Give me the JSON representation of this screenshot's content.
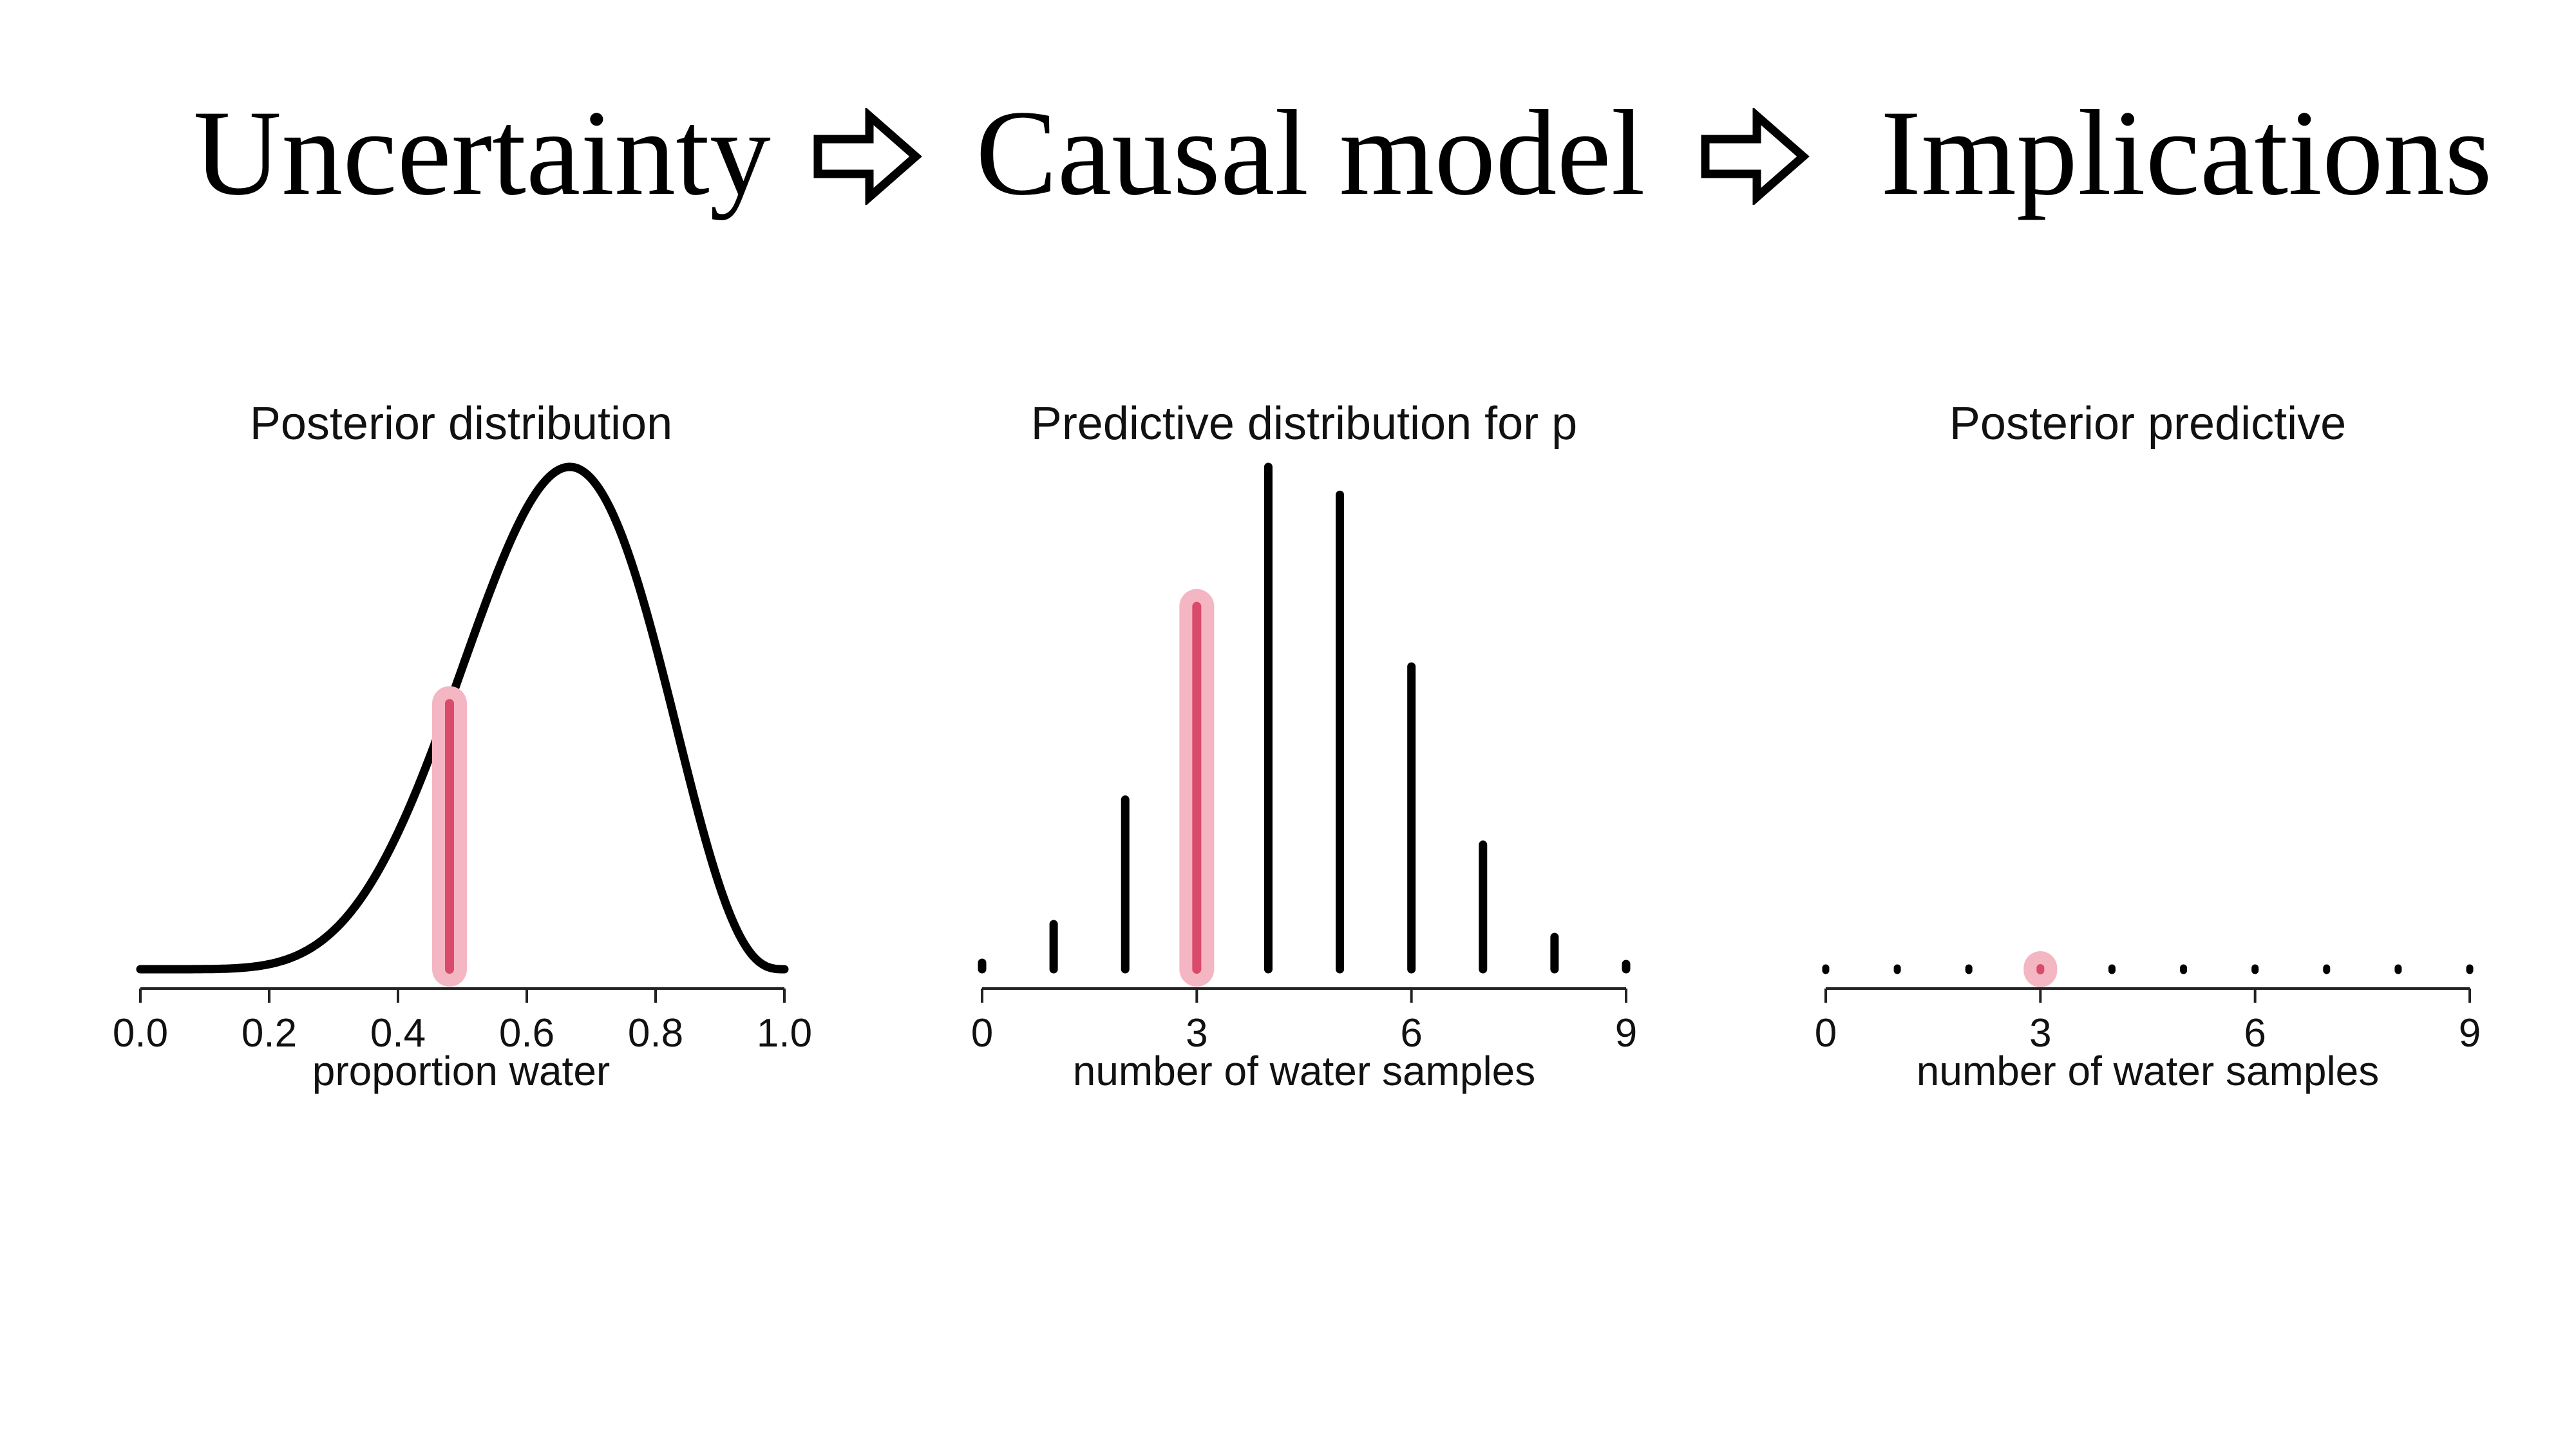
{
  "headline": {
    "steps": [
      "Uncertainty",
      "Causal model",
      "Implications"
    ],
    "arrow_icon": "right-outline-arrow-icon"
  },
  "colors": {
    "ink": "#000000",
    "highlight_core": "#d94a6b",
    "highlight_halo": "#f4b6c2"
  },
  "chart_data": [
    {
      "type": "line",
      "title": "Posterior distribution",
      "xlabel": "proportion water",
      "ylabel": "",
      "xlim": [
        0,
        1
      ],
      "x_ticks": [
        "0.0",
        "0.2",
        "0.4",
        "0.6",
        "0.8",
        "1.0"
      ],
      "x_tick_values": [
        0,
        0.2,
        0.4,
        0.6,
        0.8,
        1.0
      ],
      "curve": {
        "shape": "beta",
        "alpha": 7,
        "beta": 4
      },
      "highlight": {
        "x": 0.48,
        "note": "selected p"
      }
    },
    {
      "type": "bar",
      "title": "Predictive distribution for p",
      "xlabel": "number of water samples",
      "ylabel": "",
      "categories": [
        0,
        1,
        2,
        3,
        4,
        5,
        6,
        7,
        8,
        9
      ],
      "values": [
        0.003,
        0.021,
        0.079,
        0.169,
        0.234,
        0.221,
        0.141,
        0.058,
        0.015,
        0.002
      ],
      "x_ticks": [
        "0",
        "3",
        "6",
        "9"
      ],
      "x_tick_values": [
        0,
        3,
        6,
        9
      ],
      "highlight_index": 3
    },
    {
      "type": "bar",
      "title": "Posterior predictive",
      "xlabel": "number of water samples",
      "ylabel": "",
      "categories": [
        0,
        1,
        2,
        3,
        4,
        5,
        6,
        7,
        8,
        9
      ],
      "values": [
        0,
        0,
        0,
        0,
        0,
        0,
        0,
        0,
        0,
        0
      ],
      "x_ticks": [
        "0",
        "3",
        "6",
        "9"
      ],
      "x_tick_values": [
        0,
        3,
        6,
        9
      ],
      "highlight_index": 3
    }
  ]
}
